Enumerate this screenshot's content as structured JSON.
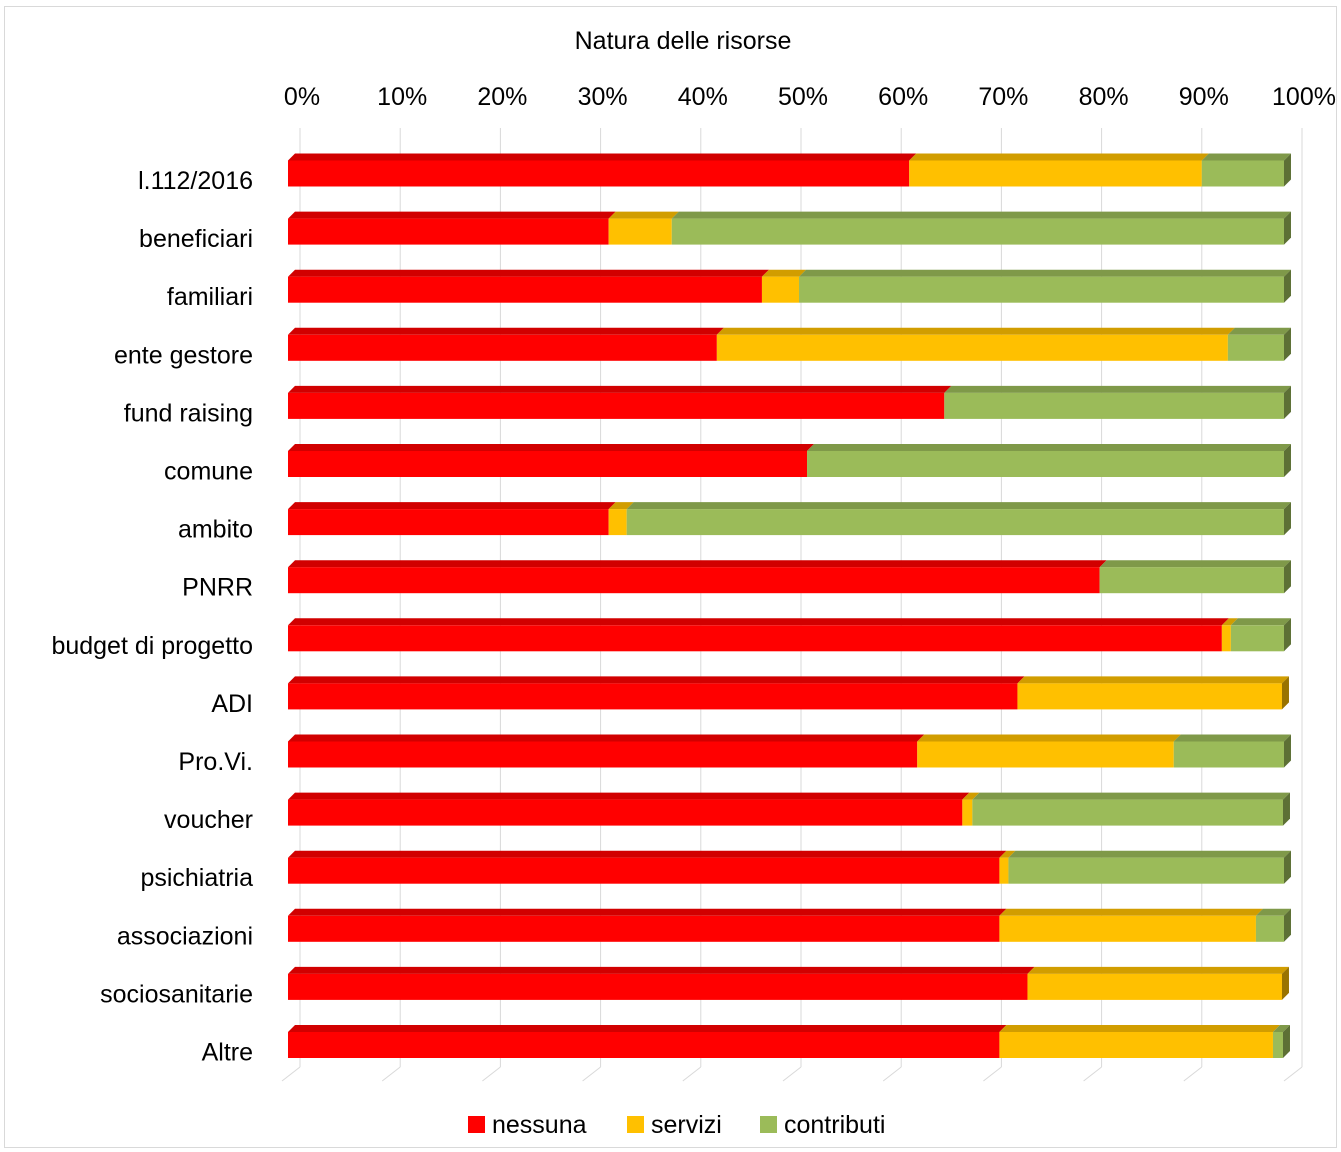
{
  "chart_data": {
    "type": "bar",
    "orientation": "horizontal",
    "stacked": "percent",
    "style": "3d",
    "title": "Natura delle risorse",
    "xlabel": "",
    "ylabel": "",
    "xlim": [
      0,
      100
    ],
    "x_ticks": [
      "0%",
      "10%",
      "20%",
      "30%",
      "40%",
      "50%",
      "60%",
      "70%",
      "80%",
      "90%",
      "100%"
    ],
    "grid": true,
    "legend_position": "bottom",
    "categories": [
      "l.112/2016",
      "beneficiari",
      "familiari",
      "ente gestore",
      "fund raising",
      "comune",
      "ambito",
      "PNRR",
      "budget di progetto",
      "ADI",
      "Pro.Vi.",
      "voucher",
      "psichiatria",
      "associazioni",
      "sociosanitarie",
      "Altre"
    ],
    "series": [
      {
        "name": "nessuna",
        "color": "#ff0000",
        "values": [
          62,
          32,
          47.3,
          42.8,
          65.5,
          51.8,
          32,
          81,
          93.2,
          72.8,
          62.8,
          67.3,
          71,
          71,
          73.8,
          71
        ]
      },
      {
        "name": "servizi",
        "color": "#ffc000",
        "values": [
          29.2,
          6.3,
          3.7,
          51,
          0,
          0,
          1.8,
          0,
          0.9,
          26.4,
          25.6,
          1,
          0.9,
          25.6,
          25.4,
          27.3
        ]
      },
      {
        "name": "contributi",
        "color": "#9bbb59",
        "values": [
          8.2,
          61.1,
          48.4,
          5.6,
          33.9,
          47.6,
          65.6,
          18.4,
          5.3,
          0,
          11,
          31,
          27.5,
          2.8,
          0,
          1
        ]
      }
    ]
  }
}
